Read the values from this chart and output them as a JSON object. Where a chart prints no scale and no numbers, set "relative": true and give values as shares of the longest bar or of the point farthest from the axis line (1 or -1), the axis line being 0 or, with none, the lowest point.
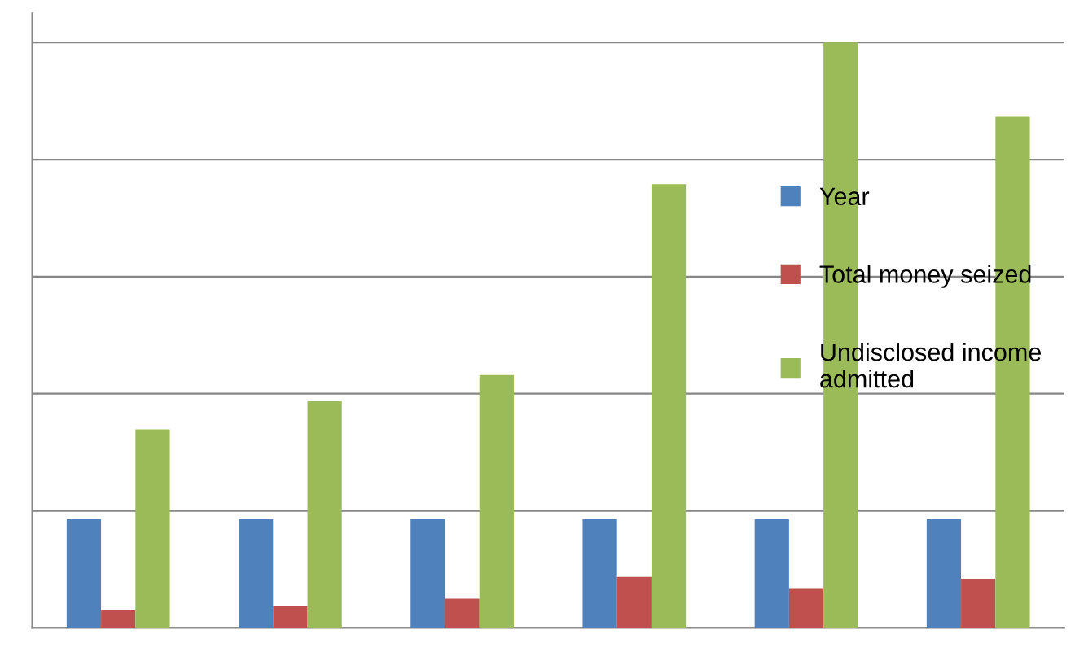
{
  "chart_data": {
    "type": "bar",
    "relative": true,
    "categories": [
      null,
      null,
      null,
      null,
      null,
      null
    ],
    "series": [
      {
        "name": "Year",
        "color": "#4f81bd",
        "values": [
          0.186,
          0.186,
          0.186,
          0.186,
          0.186,
          0.186
        ]
      },
      {
        "name": "Total money seized",
        "color": "#c0504d",
        "values": [
          0.031,
          0.037,
          0.05,
          0.087,
          0.068,
          0.084
        ]
      },
      {
        "name": "Undisclosed income\nadmitted",
        "color": "#9bbb59",
        "values": [
          0.339,
          0.388,
          0.432,
          0.758,
          1,
          0.873
        ]
      }
    ],
    "grid": "y",
    "legend": "right"
  }
}
